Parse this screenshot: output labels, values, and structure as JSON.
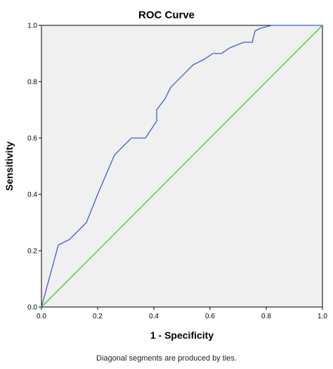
{
  "chart_data": {
    "type": "line",
    "title": "ROC Curve",
    "xlabel": "1 - Specificity",
    "ylabel": "Sensitivity",
    "xlim": [
      0.0,
      1.0
    ],
    "ylim": [
      0.0,
      1.0
    ],
    "x_ticks": [
      "0.0",
      "0.2",
      "0.4",
      "0.6",
      "0.8",
      "1.0"
    ],
    "y_ticks": [
      "0.0",
      "0.2",
      "0.4",
      "0.6",
      "0.8",
      "1.0"
    ],
    "grid": false,
    "footnote": "Diagonal segments are produced by ties.",
    "series": [
      {
        "color": "#3a5fcd",
        "x": [
          0.0,
          0.06,
          0.1,
          0.16,
          0.2,
          0.26,
          0.32,
          0.37,
          0.41,
          0.41,
          0.44,
          0.46,
          0.54,
          0.58,
          0.61,
          0.64,
          0.67,
          0.72,
          0.75,
          0.76,
          0.78,
          0.82,
          1.0
        ],
        "y": [
          0.0,
          0.22,
          0.24,
          0.3,
          0.4,
          0.54,
          0.6,
          0.6,
          0.66,
          0.7,
          0.74,
          0.78,
          0.86,
          0.88,
          0.9,
          0.9,
          0.92,
          0.94,
          0.94,
          0.98,
          0.99,
          1.0,
          1.0
        ]
      },
      {
        "color": "#33cc33",
        "x": [
          0.0,
          1.0
        ],
        "y": [
          0.0,
          1.0
        ]
      }
    ]
  }
}
